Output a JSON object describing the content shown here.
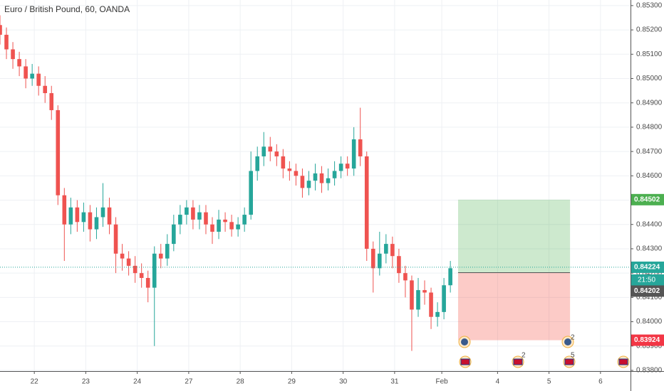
{
  "chart_data": {
    "type": "candlestick",
    "title": "Euro / British Pound, 60, OANDA",
    "x": [
      0,
      3,
      6,
      9,
      12,
      15,
      18,
      21,
      24,
      27,
      30,
      33,
      36,
      39,
      42,
      45,
      48,
      51,
      54,
      57,
      60,
      63,
      66,
      69,
      72,
      75,
      78,
      81,
      84,
      87,
      90,
      93,
      96,
      99,
      102,
      105,
      108,
      111,
      114,
      117,
      120,
      123,
      126,
      129,
      132,
      135,
      138,
      141,
      144,
      147,
      150,
      153,
      156,
      159,
      162,
      165,
      168,
      171,
      174,
      177,
      180,
      183,
      186,
      189,
      192,
      195,
      198,
      201,
      204,
      207,
      210
    ],
    "open": [
      0.8522,
      0.8518,
      0.8512,
      0.8508,
      0.8505,
      0.85,
      0.8502,
      0.8497,
      0.8494,
      0.8487,
      0.8452,
      0.844,
      0.8447,
      0.8441,
      0.8445,
      0.8438,
      0.8443,
      0.8447,
      0.844,
      0.8428,
      0.8426,
      0.8423,
      0.842,
      0.8418,
      0.8414,
      0.8428,
      0.8426,
      0.8432,
      0.844,
      0.8444,
      0.8447,
      0.8442,
      0.8445,
      0.844,
      0.8437,
      0.8442,
      0.8441,
      0.8438,
      0.844,
      0.8444,
      0.8462,
      0.8468,
      0.8472,
      0.847,
      0.8468,
      0.8463,
      0.8462,
      0.846,
      0.8455,
      0.8458,
      0.8461,
      0.8457,
      0.8459,
      0.8462,
      0.8465,
      0.8463,
      0.8475,
      0.8468,
      0.843,
      0.8422,
      0.8428,
      0.8432,
      0.8427,
      0.842,
      0.8417,
      0.8405,
      0.8413,
      0.8412,
      0.8402,
      0.8404,
      0.8415
    ],
    "high": [
      0.8526,
      0.8521,
      0.8515,
      0.8511,
      0.8508,
      0.8506,
      0.8505,
      0.8501,
      0.8497,
      0.8489,
      0.8455,
      0.8451,
      0.845,
      0.8449,
      0.8448,
      0.8447,
      0.8457,
      0.8451,
      0.8443,
      0.8432,
      0.8429,
      0.8427,
      0.8424,
      0.8421,
      0.8431,
      0.8432,
      0.8436,
      0.8444,
      0.8448,
      0.845,
      0.845,
      0.8448,
      0.8448,
      0.8443,
      0.8446,
      0.8445,
      0.8444,
      0.8443,
      0.8447,
      0.847,
      0.8472,
      0.8478,
      0.8476,
      0.8473,
      0.8471,
      0.8466,
      0.8465,
      0.8463,
      0.8462,
      0.8465,
      0.8464,
      0.8463,
      0.8466,
      0.8468,
      0.8468,
      0.848,
      0.8488,
      0.847,
      0.8433,
      0.8437,
      0.8436,
      0.8435,
      0.843,
      0.8423,
      0.8419,
      0.8418,
      0.8417,
      0.8414,
      0.8408,
      0.8418,
      0.8425
    ],
    "low": [
      0.8514,
      0.8508,
      0.8504,
      0.8501,
      0.8496,
      0.8497,
      0.8493,
      0.849,
      0.8483,
      0.8448,
      0.8425,
      0.8436,
      0.8437,
      0.8437,
      0.8433,
      0.8434,
      0.8439,
      0.8436,
      0.842,
      0.8421,
      0.8419,
      0.8416,
      0.8414,
      0.8408,
      0.839,
      0.8422,
      0.8423,
      0.8429,
      0.8436,
      0.844,
      0.8438,
      0.8438,
      0.8436,
      0.8432,
      0.8434,
      0.8437,
      0.8435,
      0.8435,
      0.8437,
      0.8442,
      0.8458,
      0.8464,
      0.8466,
      0.8464,
      0.8459,
      0.8458,
      0.8456,
      0.8451,
      0.8452,
      0.8454,
      0.8453,
      0.8454,
      0.8456,
      0.8459,
      0.846,
      0.846,
      0.8464,
      0.8425,
      0.8412,
      0.8419,
      0.8424,
      0.8422,
      0.8416,
      0.841,
      0.8388,
      0.8402,
      0.8407,
      0.8397,
      0.8398,
      0.8401,
      0.8412
    ],
    "close": [
      0.8518,
      0.8512,
      0.8508,
      0.8505,
      0.85,
      0.8502,
      0.8497,
      0.8494,
      0.8487,
      0.8452,
      0.844,
      0.8447,
      0.8441,
      0.8445,
      0.8438,
      0.8443,
      0.8447,
      0.844,
      0.8428,
      0.8426,
      0.8423,
      0.842,
      0.8418,
      0.8414,
      0.8428,
      0.8426,
      0.8432,
      0.844,
      0.8444,
      0.8447,
      0.8442,
      0.8445,
      0.844,
      0.8437,
      0.8442,
      0.8441,
      0.8438,
      0.844,
      0.8444,
      0.8462,
      0.8468,
      0.8472,
      0.847,
      0.8468,
      0.8463,
      0.8462,
      0.846,
      0.8455,
      0.8458,
      0.8461,
      0.8457,
      0.8459,
      0.8462,
      0.8465,
      0.8463,
      0.8475,
      0.8468,
      0.843,
      0.8422,
      0.8428,
      0.8432,
      0.8427,
      0.842,
      0.8417,
      0.8405,
      0.8413,
      0.8412,
      0.8402,
      0.8404,
      0.8415,
      0.8422
    ],
    "up_color": "#26a69a",
    "down_color": "#ef5350",
    "xlim": [
      0,
      294
    ],
    "xticks": [
      {
        "value": 16,
        "label": "22"
      },
      {
        "value": 40,
        "label": "23"
      },
      {
        "value": 64,
        "label": "24"
      },
      {
        "value": 88,
        "label": "27"
      },
      {
        "value": 112,
        "label": "28"
      },
      {
        "value": 136,
        "label": "29"
      },
      {
        "value": 160,
        "label": "30"
      },
      {
        "value": 184,
        "label": "31"
      },
      {
        "value": 206,
        "label": "Feb"
      },
      {
        "value": 232,
        "label": "4"
      },
      {
        "value": 256,
        "label": "5"
      },
      {
        "value": 280,
        "label": "6"
      }
    ],
    "ylim": [
      0.83797,
      0.85323
    ],
    "yticks": [
      {
        "value": 0.853,
        "label": "0.85300"
      },
      {
        "value": 0.852,
        "label": "0.85200"
      },
      {
        "value": 0.851,
        "label": "0.85100"
      },
      {
        "value": 0.85,
        "label": "0.85000"
      },
      {
        "value": 0.849,
        "label": "0.84900"
      },
      {
        "value": 0.848,
        "label": "0.84800"
      },
      {
        "value": 0.847,
        "label": "0.84700"
      },
      {
        "value": 0.846,
        "label": "0.84600"
      },
      {
        "value": 0.845,
        "label": "0.84500"
      },
      {
        "value": 0.844,
        "label": "0.84400"
      },
      {
        "value": 0.843,
        "label": "0.84300"
      },
      {
        "value": 0.842,
        "label": "0.84200"
      },
      {
        "value": 0.841,
        "label": "0.84100"
      },
      {
        "value": 0.84,
        "label": "0.84000"
      },
      {
        "value": 0.839,
        "label": "0.83900"
      },
      {
        "value": 0.838,
        "label": "0.83800"
      }
    ],
    "grid": true,
    "current_price": 0.84224,
    "countdown": "21:50",
    "position": {
      "x_start": 213.6,
      "x_end": 265.8,
      "target": 0.84502,
      "entry": 0.84202,
      "stop": 0.83924
    },
    "events": [
      {
        "count": 2
      },
      {
        "count": 2
      },
      {
        "count": 5
      }
    ]
  }
}
